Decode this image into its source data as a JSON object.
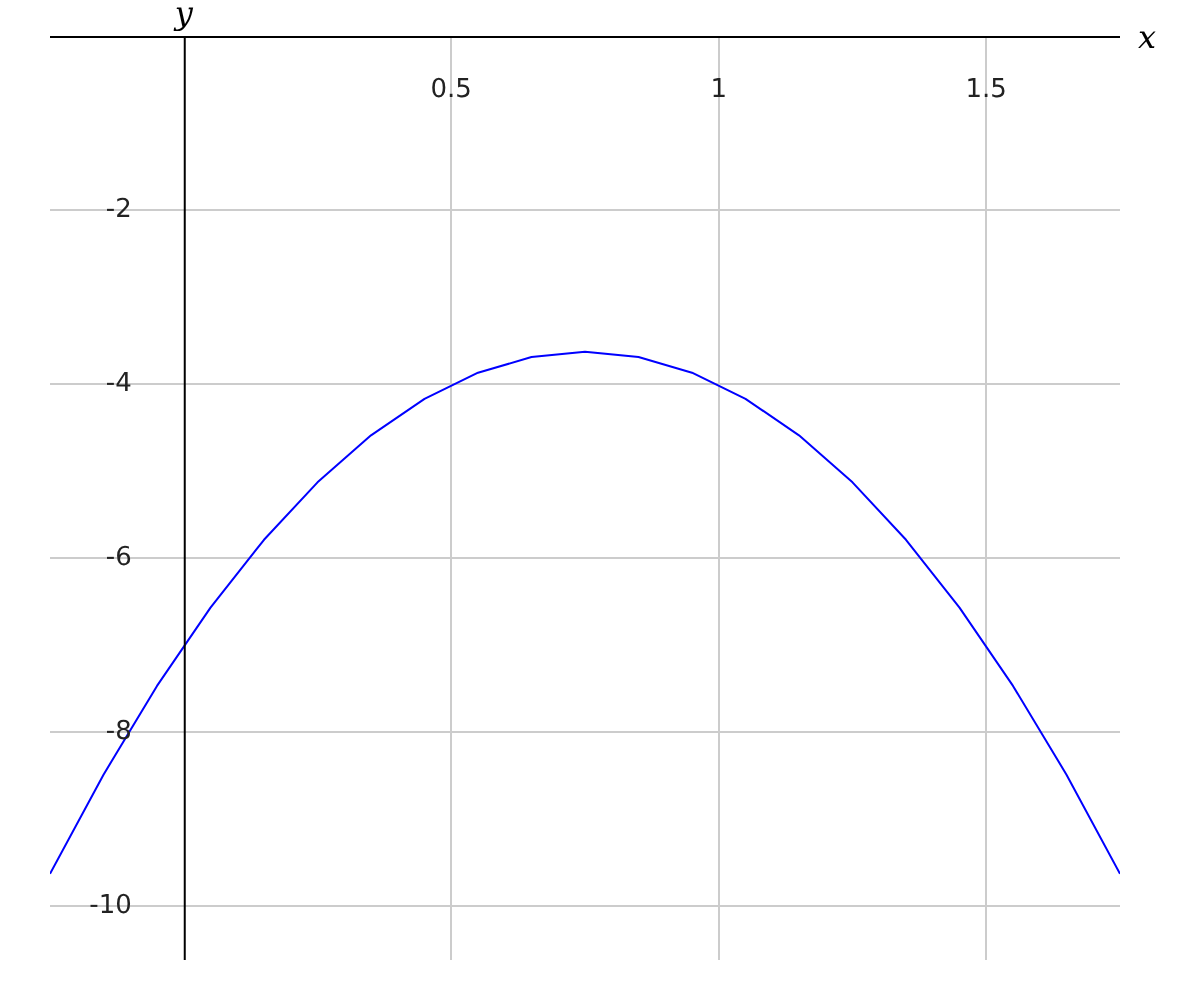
{
  "chart_data": {
    "type": "line",
    "xlabel": "x",
    "ylabel": "y",
    "x": [
      -0.25,
      -0.15,
      -0.05,
      0.05,
      0.15,
      0.25,
      0.35,
      0.45,
      0.55,
      0.65,
      0.75,
      0.85,
      0.95,
      1.05,
      1.15,
      1.25,
      1.35,
      1.45,
      1.55,
      1.65,
      1.75
    ],
    "series": [
      {
        "color": "#0000ff",
        "values": [
          -9.63,
          -8.49,
          -7.47,
          -6.57,
          -5.79,
          -5.13,
          -4.59,
          -4.17,
          -3.87,
          -3.69,
          -3.63,
          -3.69,
          -3.87,
          -4.17,
          -4.59,
          -5.13,
          -5.79,
          -6.57,
          -7.47,
          -8.49,
          -9.63
        ]
      }
    ],
    "xlim": [
      -0.25,
      1.75
    ],
    "ylim": [
      -10.62,
      0
    ],
    "xticks": [
      0.5,
      1,
      1.5
    ],
    "yticks": [
      -2,
      -4,
      -6,
      -8,
      -10
    ],
    "grid": true,
    "marker": "none",
    "line_style": "solid"
  }
}
